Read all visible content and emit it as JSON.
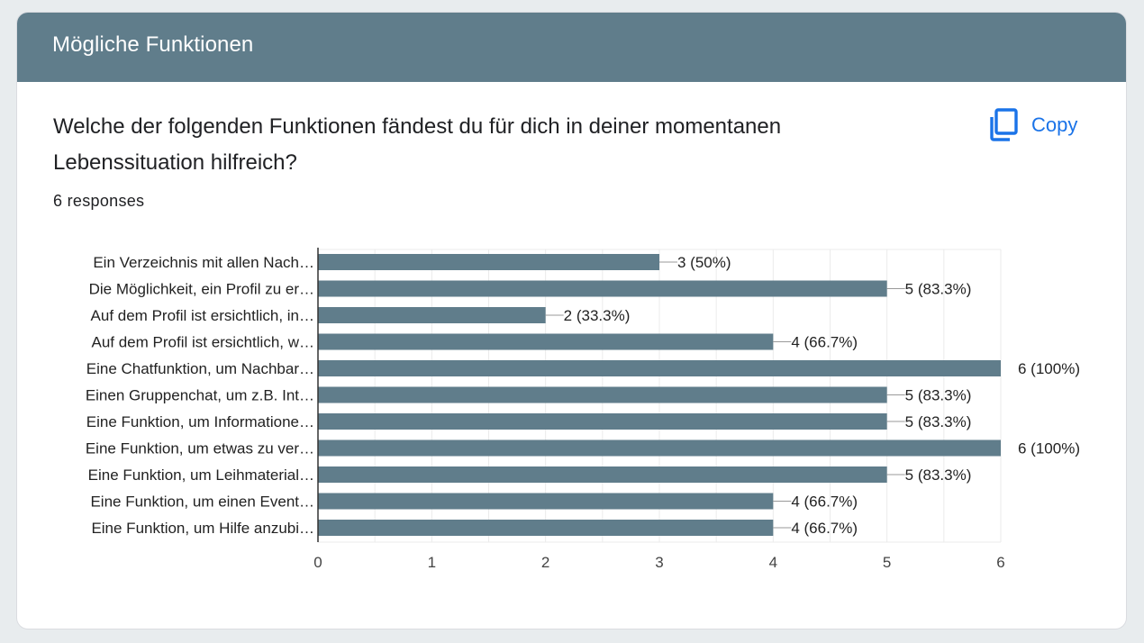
{
  "header": {
    "title": "Mögliche Funktionen"
  },
  "question": {
    "text": "Welche der folgenden Funktionen fändest du für dich in deiner momentanen Lebenssituation hilfreich?"
  },
  "responses": {
    "text": "6 responses"
  },
  "copy": {
    "label": "Copy",
    "icon": "copy-icon"
  },
  "colors": {
    "header": "#607d8b",
    "bar": "#607d8b",
    "accent": "#1a73e8"
  },
  "chart_data": {
    "type": "bar",
    "orientation": "horizontal",
    "categories": [
      "Ein Verzeichnis mit allen Nach…",
      "Die Möglichkeit, ein Profil zu er…",
      "Auf dem Profil ist ersichtlich, in…",
      "Auf dem Profil ist ersichtlich, w…",
      "Eine Chatfunktion, um Nachbar…",
      "Einen Gruppenchat, um z.B. Int…",
      "Eine Funktion, um Informatione…",
      "Eine Funktion, um etwas zu ver…",
      "Eine Funktion, um Leihmaterial…",
      "Eine Funktion, um einen Event…",
      "Eine Funktion, um Hilfe anzubi…"
    ],
    "values": [
      3,
      5,
      2,
      4,
      6,
      5,
      5,
      6,
      5,
      4,
      4
    ],
    "data_labels": [
      "3 (50%)",
      "5 (83.3%)",
      "2 (33.3%)",
      "4 (66.7%)",
      "6 (100%)",
      "5 (83.3%)",
      "5 (83.3%)",
      "6 (100%)",
      "5 (83.3%)",
      "4 (66.7%)",
      "4 (66.7%)"
    ],
    "xlim": [
      0,
      6
    ],
    "xticks": [
      "0",
      "1",
      "2",
      "3",
      "4",
      "5",
      "6"
    ],
    "grid": true,
    "title": "",
    "xlabel": "",
    "ylabel": ""
  }
}
